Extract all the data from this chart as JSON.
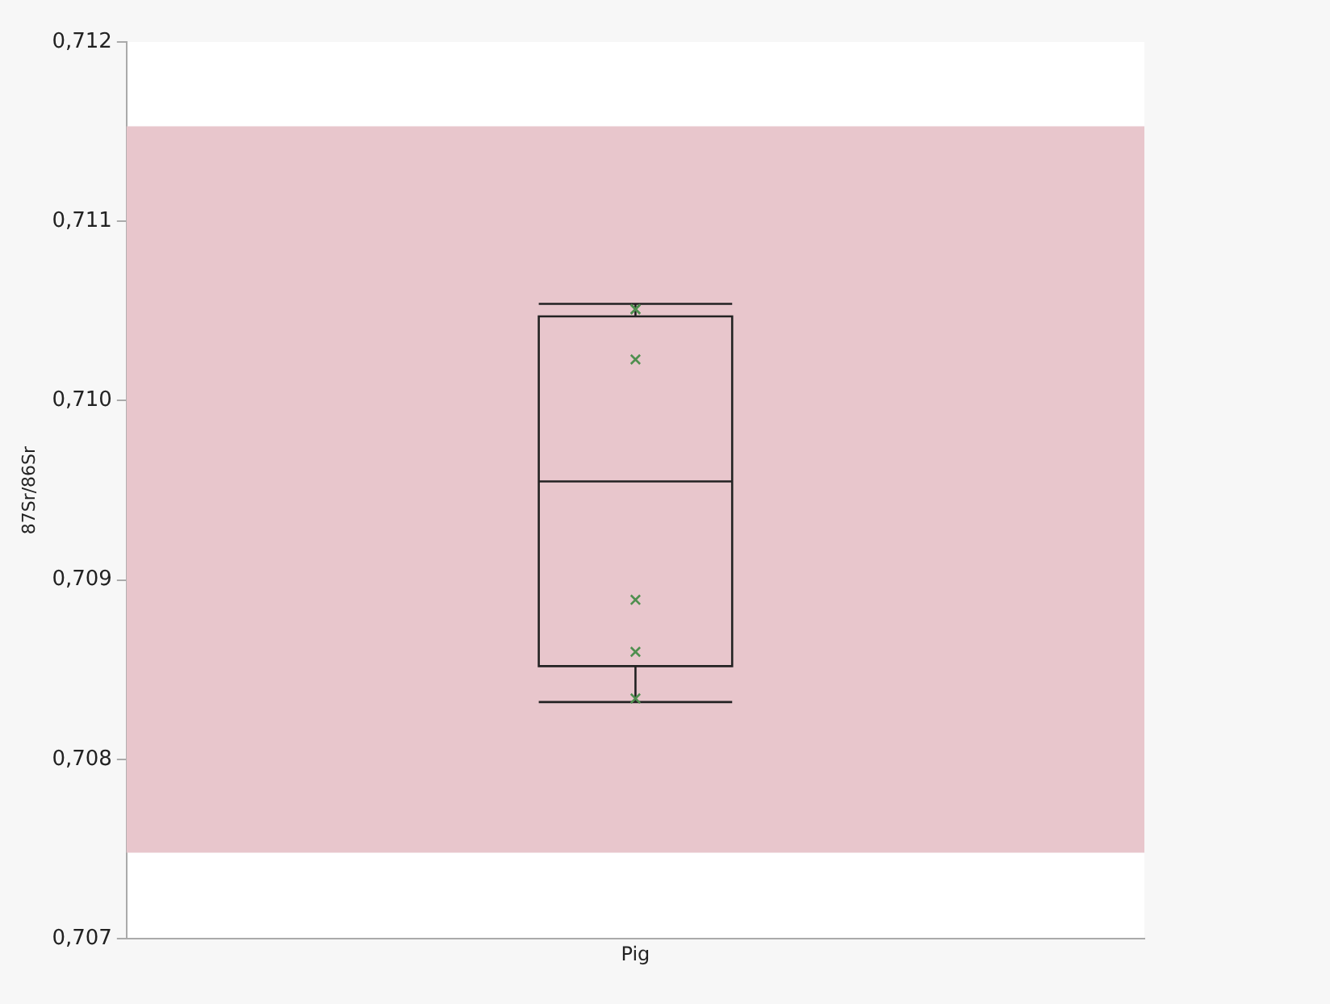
{
  "chart_data": {
    "type": "box",
    "ylabel": "87Sr/86Sr",
    "categories": [
      "Pig"
    ],
    "boxes": [
      {
        "low": 0.70832,
        "q1": 0.70852,
        "median": 0.70955,
        "q3": 0.71047,
        "high": 0.71054
      }
    ],
    "series": [
      {
        "type": "scatter",
        "x": [
          "Pig",
          "Pig",
          "Pig",
          "Pig",
          "Pig",
          "Pig"
        ],
        "values": [
          0.71051,
          0.71051,
          0.71023,
          0.70889,
          0.7086,
          0.70834
        ],
        "color": "#4f8f4f",
        "marker": "cross"
      }
    ],
    "ylim": [
      0.707,
      0.712
    ],
    "yticks": [
      {
        "value": 0.707,
        "label": "0,707"
      },
      {
        "value": 0.708,
        "label": "0,708"
      },
      {
        "value": 0.709,
        "label": "0,709"
      },
      {
        "value": 0.71,
        "label": "0,710"
      },
      {
        "value": 0.711,
        "label": "0,711"
      },
      {
        "value": 0.712,
        "label": "0,712"
      }
    ],
    "bands": [
      {
        "axis": "y",
        "from": 0.70748,
        "to": 0.71153,
        "color": "#e8c6cc"
      }
    ],
    "grid": false,
    "legend": false
  }
}
